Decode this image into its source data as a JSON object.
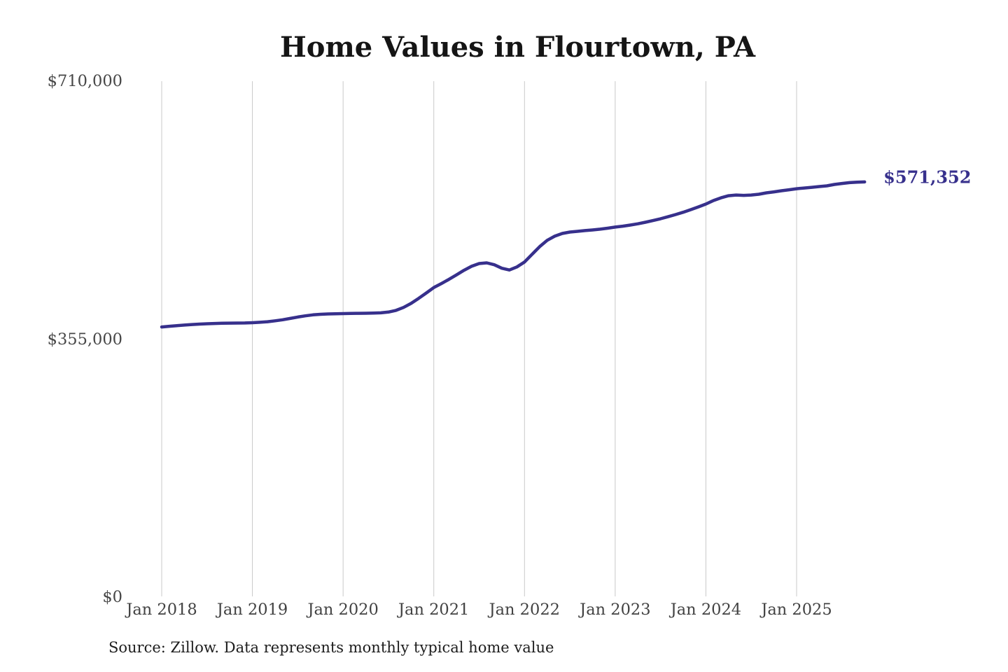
{
  "chart_data": {
    "type": "line",
    "title": "Home Values in Flourtown, PA",
    "source_note": "Source: Zillow. Data represents monthly typical home value",
    "end_label": "$571,352",
    "legend": "none",
    "grid": "vertical-only",
    "ylim": [
      0,
      710000
    ],
    "y_ticks": [
      {
        "label": "$0",
        "value": 0
      },
      {
        "label": "$355,000",
        "value": 355000
      },
      {
        "label": "$710,000",
        "value": 710000
      }
    ],
    "x_tick_labels": [
      "Jan 2018",
      "Jan 2019",
      "Jan 2020",
      "Jan 2021",
      "Jan 2022",
      "Jan 2023",
      "Jan 2024",
      "Jan 2025"
    ],
    "x_tick_months": [
      0,
      12,
      24,
      36,
      48,
      60,
      72,
      84
    ],
    "start_month": "2018-01",
    "end_month": "2025-10",
    "line_color": "#37308c",
    "grid_color": "#c9c9c9",
    "series": [
      {
        "name": "Monthly typical home value",
        "values": [
          371800,
          372700,
          373600,
          374400,
          375100,
          375700,
          376200,
          376600,
          376900,
          377100,
          377200,
          377300,
          377600,
          378200,
          379000,
          380200,
          381700,
          383500,
          385400,
          387100,
          388400,
          389200,
          389700,
          390000,
          390200,
          390400,
          390500,
          390600,
          390800,
          391200,
          392300,
          394600,
          398600,
          404200,
          411200,
          418500,
          426000,
          431500,
          437300,
          443400,
          449800,
          455300,
          459000,
          460000,
          457400,
          452600,
          450200,
          454400,
          461200,
          471800,
          482300,
          491000,
          496700,
          500500,
          502400,
          503400,
          504400,
          505300,
          506300,
          507700,
          509200,
          510500,
          512000,
          513800,
          515900,
          518200,
          520700,
          523500,
          526500,
          529700,
          533200,
          537000,
          540900,
          545700,
          549500,
          552400,
          553400,
          552900,
          553400,
          554400,
          556300,
          557700,
          559200,
          560600,
          562000,
          563000,
          564000,
          565000,
          566000,
          567900,
          569300,
          570400,
          571000,
          571352
        ]
      }
    ]
  }
}
